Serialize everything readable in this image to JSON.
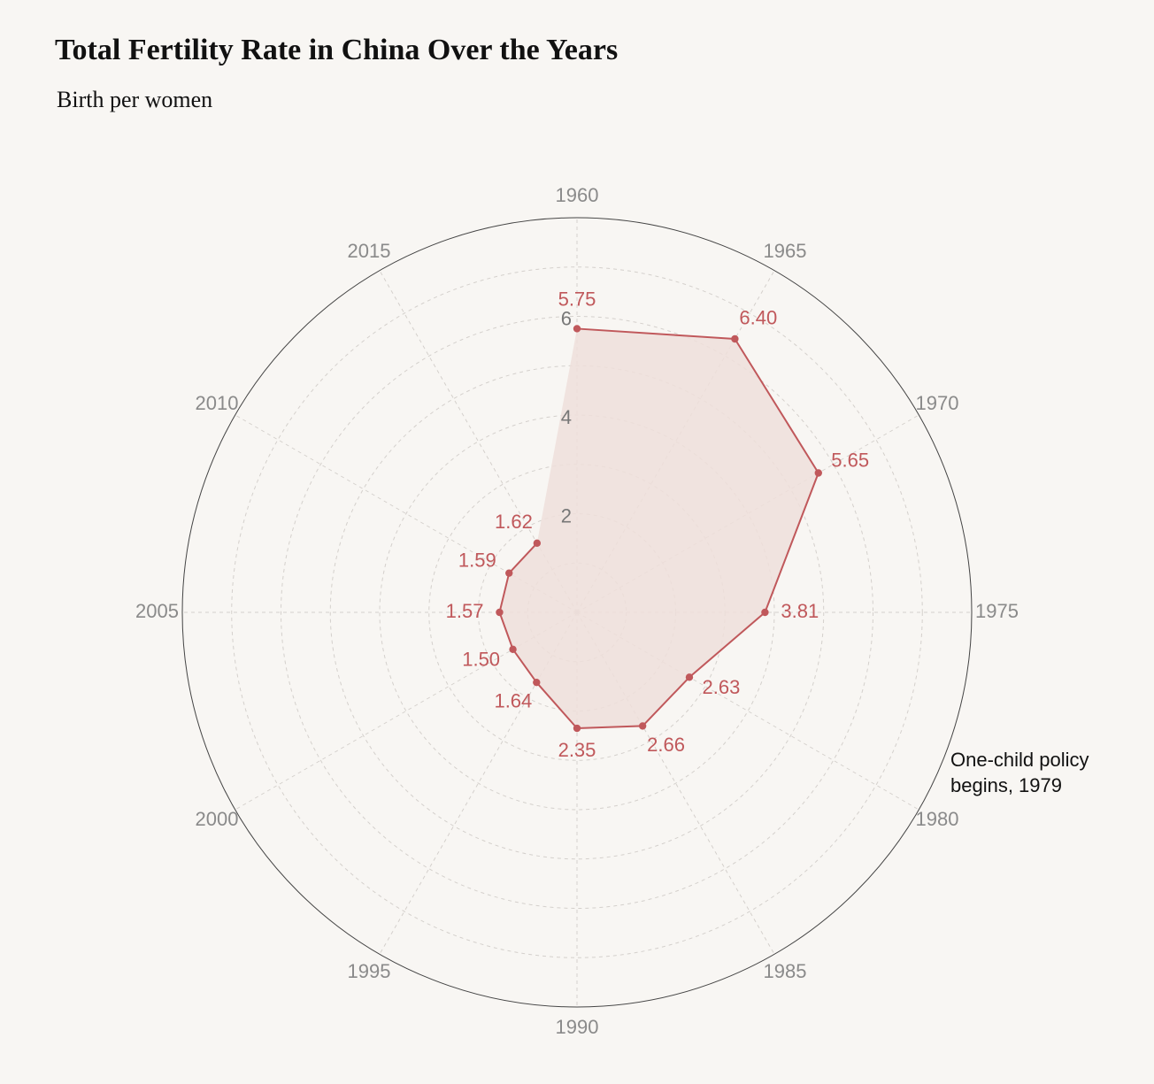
{
  "title": "Total Fertility Rate in China Over the Years",
  "subtitle": "Birth per women",
  "colors": {
    "background": "#f8f6f3",
    "series": "#c0585b",
    "fill": "#efdfdb",
    "grid": "#d4d0cc",
    "outer_ring": "#444444",
    "angle_label": "#8a8a8a",
    "annotation": "#111111"
  },
  "chart_data": {
    "type": "radar",
    "angular_axis": {
      "direction": "clockwise",
      "start": "top",
      "categories": [
        "1960",
        "1965",
        "1970",
        "1975",
        "1980",
        "1985",
        "1990",
        "1995",
        "2000",
        "2005",
        "2010",
        "2015"
      ]
    },
    "radial_axis": {
      "range": [
        0,
        8
      ],
      "ticks": [
        2,
        4,
        6
      ],
      "tick_labels": [
        "2",
        "4",
        "6"
      ],
      "grid": true
    },
    "series": [
      {
        "points": [
          {
            "year": "1960",
            "value": 5.75,
            "label": "5.75"
          },
          {
            "year": "1965",
            "value": 6.4,
            "label": "6.40"
          },
          {
            "year": "1970",
            "value": 5.65,
            "label": "5.65"
          },
          {
            "year": "1975",
            "value": 3.81,
            "label": "3.81"
          },
          {
            "year": "1980",
            "value": 2.63,
            "label": "2.63"
          },
          {
            "year": "1985",
            "value": 2.66,
            "label": "2.66"
          },
          {
            "year": "1990",
            "value": 2.35,
            "label": "2.35"
          },
          {
            "year": "1995",
            "value": 1.64,
            "label": "1.64"
          },
          {
            "year": "2000",
            "value": 1.5,
            "label": "1.50"
          },
          {
            "year": "2005",
            "value": 1.57,
            "label": "1.57"
          },
          {
            "year": "2010",
            "value": 1.59,
            "label": "1.59"
          },
          {
            "year": "2015",
            "value": 1.62,
            "label": "1.62"
          }
        ]
      }
    ],
    "annotations": [
      {
        "text_lines": [
          "One-child policy",
          "begins, 1979"
        ],
        "near": "1980"
      }
    ],
    "legend": "none"
  }
}
